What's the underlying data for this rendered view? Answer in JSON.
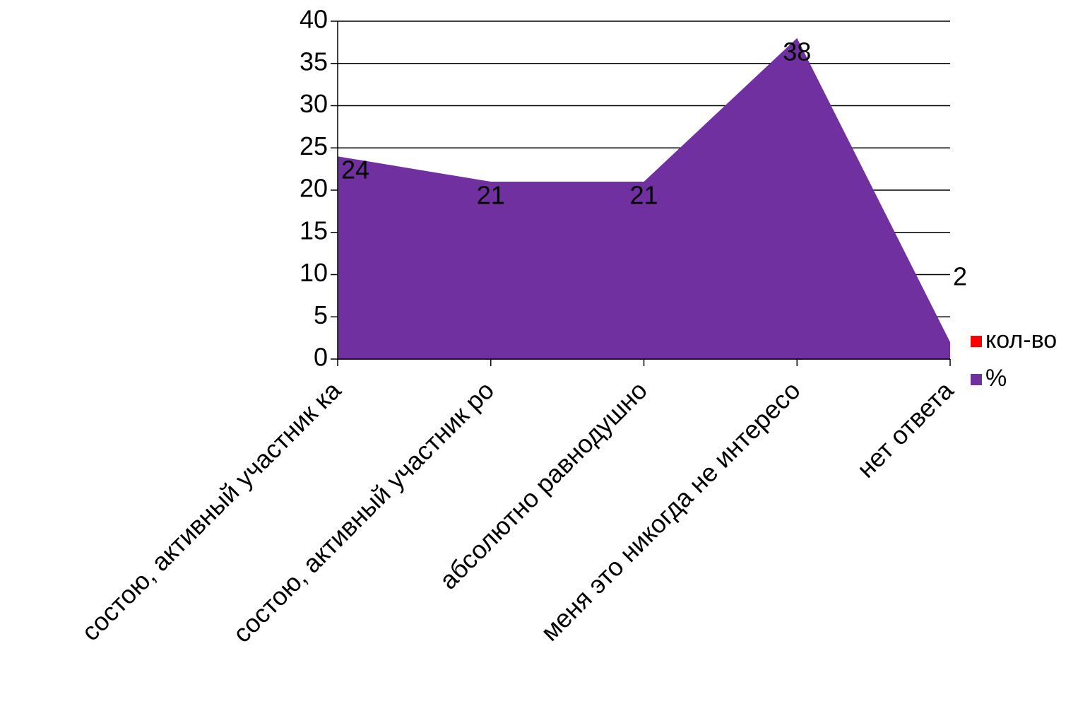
{
  "chart_data": {
    "type": "area",
    "categories": [
      "состою, активный участник ка",
      "состою, активный участник ро",
      "абсолютно равнодушно",
      "меня это никогда не интересо",
      "нет ответа"
    ],
    "series": [
      {
        "name": "кол-во",
        "color": "#ff0000",
        "values": [
          null,
          null,
          null,
          null,
          null
        ]
      },
      {
        "name": "%",
        "color": "#7030a0",
        "values": [
          24,
          21,
          21,
          38,
          2
        ]
      }
    ],
    "ylim": [
      0,
      40
    ],
    "yticks": [
      0,
      5,
      10,
      15,
      20,
      25,
      30,
      35,
      40
    ],
    "grid": true,
    "legend": "right"
  }
}
